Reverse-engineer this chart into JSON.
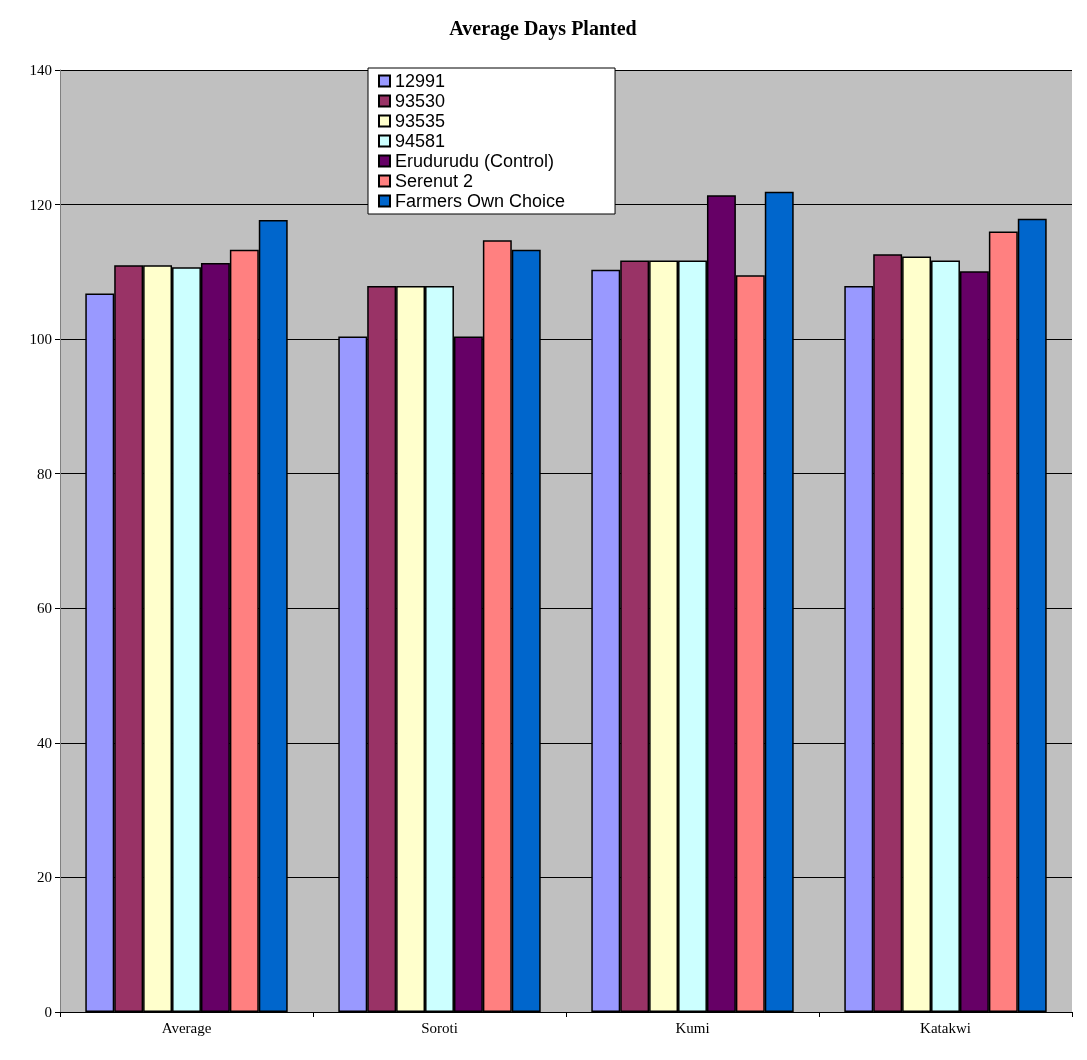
{
  "chart_data": {
    "type": "bar",
    "title": "Average Days Planted",
    "categories": [
      "Average",
      "Soroti",
      "Kumi",
      "Katakwi"
    ],
    "series": [
      {
        "name": "12991",
        "color": "#9999ff",
        "values": [
          106.8,
          100.4,
          110.3,
          107.9
        ]
      },
      {
        "name": "93530",
        "color": "#993366",
        "values": [
          111.0,
          107.9,
          111.7,
          112.6
        ]
      },
      {
        "name": "93535",
        "color": "#ffffcc",
        "values": [
          111.0,
          107.9,
          111.7,
          112.3
        ]
      },
      {
        "name": "94581",
        "color": "#ccffff",
        "values": [
          110.7,
          107.9,
          111.7,
          111.7
        ]
      },
      {
        "name": "Erudurudu (Control)",
        "color": "#660066",
        "values": [
          111.3,
          100.4,
          121.4,
          110.1
        ]
      },
      {
        "name": "Serenut 2",
        "color": "#ff8080",
        "values": [
          113.3,
          114.7,
          109.5,
          116.0
        ]
      },
      {
        "name": "Farmers Own Choice",
        "color": "#0066cc",
        "values": [
          117.7,
          113.3,
          121.9,
          117.9
        ]
      }
    ],
    "ylim": [
      0,
      140
    ],
    "yticks": [
      0,
      20,
      40,
      60,
      80,
      100,
      120,
      140
    ],
    "grid": "y",
    "legend": "top"
  }
}
